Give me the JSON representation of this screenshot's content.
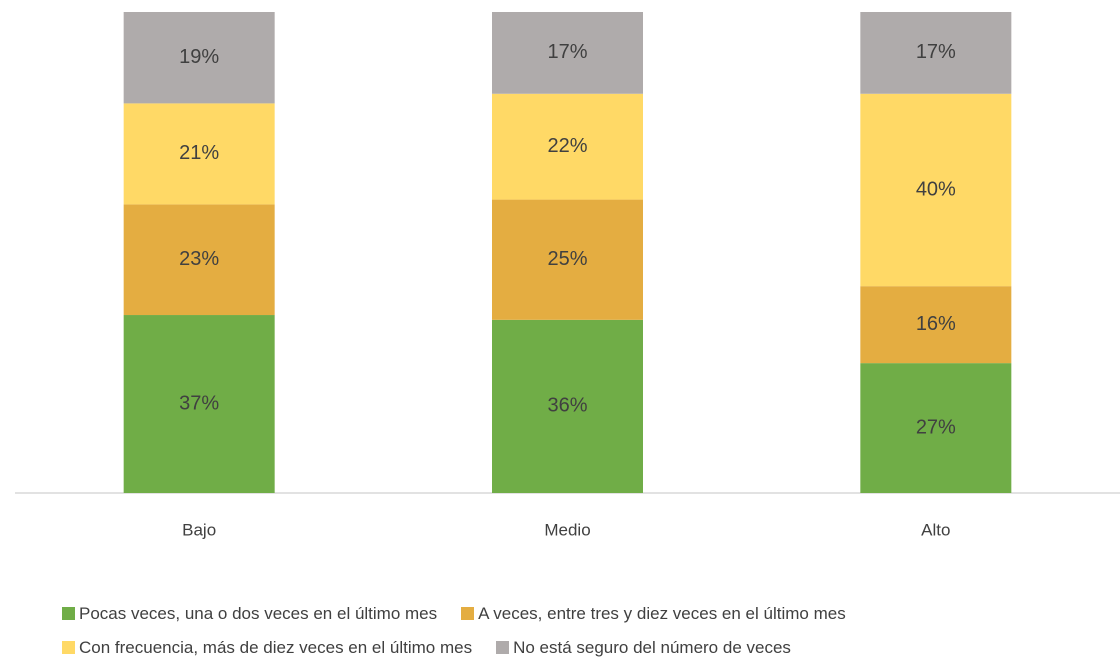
{
  "chart_data": {
    "type": "stacked_bar",
    "categories": [
      "Bajo",
      "Medio",
      "Alto"
    ],
    "ylim": [
      0,
      100
    ],
    "series": [
      {
        "name": "Pocas veces, una o dos veces en el último mes",
        "color": "#70ad47",
        "values": [
          37,
          36,
          27
        ],
        "value_labels": [
          "37%",
          "36%",
          "27%"
        ]
      },
      {
        "name": "A veces, entre tres y diez veces en el último mes",
        "color": "#e4ad41",
        "values": [
          23,
          25,
          16
        ],
        "value_labels": [
          "23%",
          "25%",
          "16%"
        ]
      },
      {
        "name": "Con frecuencia, más de diez veces en el último mes",
        "color": "#ffd966",
        "values": [
          21,
          22,
          40
        ],
        "value_labels": [
          "21%",
          "22%",
          "40%"
        ]
      },
      {
        "name": "No está seguro del número de veces",
        "color": "#afabab",
        "values": [
          19,
          17,
          17
        ],
        "value_labels": [
          "19%",
          "17%",
          "17%"
        ]
      }
    ]
  }
}
